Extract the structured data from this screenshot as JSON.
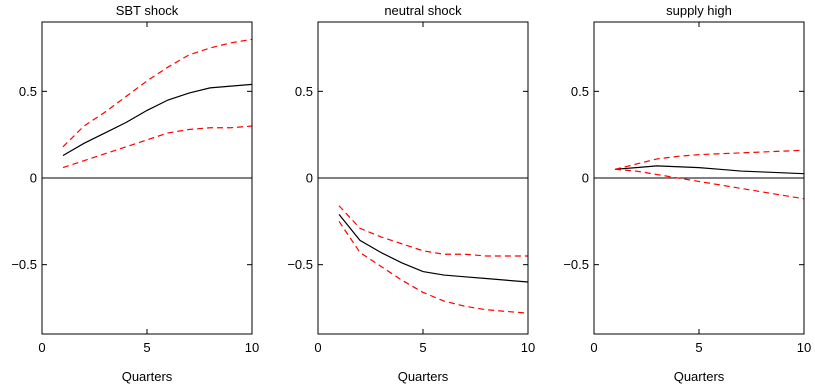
{
  "chart_data": [
    {
      "type": "line",
      "title": "SBT shock",
      "xlabel": "Quarters",
      "ylabel": "",
      "xlim": [
        0,
        10
      ],
      "ylim": [
        -0.9,
        0.9
      ],
      "xticks": [
        0,
        5,
        10
      ],
      "yticks": [
        -0.5,
        0,
        0.5
      ],
      "ytick_labels": [
        "−0.5",
        "0",
        "0.5"
      ],
      "zero_line": true,
      "x": [
        1,
        2,
        3,
        4,
        5,
        6,
        7,
        8,
        9,
        10
      ],
      "series": [
        {
          "role": "estimate",
          "color": "#000000",
          "dash": "solid",
          "values": [
            0.13,
            0.2,
            0.26,
            0.32,
            0.39,
            0.45,
            0.49,
            0.52,
            0.53,
            0.54
          ]
        },
        {
          "role": "upper-band",
          "color": "#ff0000",
          "dash": "dashed",
          "values": [
            0.18,
            0.3,
            0.38,
            0.47,
            0.56,
            0.64,
            0.71,
            0.75,
            0.78,
            0.8
          ]
        },
        {
          "role": "lower-band",
          "color": "#ff0000",
          "dash": "dashed",
          "values": [
            0.06,
            0.1,
            0.14,
            0.18,
            0.22,
            0.26,
            0.28,
            0.29,
            0.29,
            0.3
          ]
        }
      ]
    },
    {
      "type": "line",
      "title": "neutral shock",
      "xlabel": "Quarters",
      "ylabel": "",
      "xlim": [
        0,
        10
      ],
      "ylim": [
        -0.9,
        0.9
      ],
      "xticks": [
        0,
        5,
        10
      ],
      "yticks": [
        -0.5,
        0,
        0.5
      ],
      "ytick_labels": [
        "−0.5",
        "0",
        "0.5"
      ],
      "zero_line": true,
      "x": [
        1,
        2,
        3,
        4,
        5,
        6,
        7,
        8,
        9,
        10
      ],
      "series": [
        {
          "role": "estimate",
          "color": "#000000",
          "dash": "solid",
          "values": [
            -0.21,
            -0.36,
            -0.43,
            -0.49,
            -0.54,
            -0.56,
            -0.57,
            -0.58,
            -0.59,
            -0.6
          ]
        },
        {
          "role": "upper-band",
          "color": "#ff0000",
          "dash": "dashed",
          "values": [
            -0.16,
            -0.29,
            -0.34,
            -0.38,
            -0.42,
            -0.44,
            -0.44,
            -0.45,
            -0.45,
            -0.45
          ]
        },
        {
          "role": "lower-band",
          "color": "#ff0000",
          "dash": "dashed",
          "values": [
            -0.25,
            -0.43,
            -0.51,
            -0.59,
            -0.66,
            -0.71,
            -0.74,
            -0.76,
            -0.77,
            -0.78
          ]
        }
      ]
    },
    {
      "type": "line",
      "title": "supply high",
      "xlabel": "Quarters",
      "ylabel": "",
      "xlim": [
        0,
        10
      ],
      "ylim": [
        -0.9,
        0.9
      ],
      "xticks": [
        0,
        5,
        10
      ],
      "yticks": [
        -0.5,
        0,
        0.5
      ],
      "ytick_labels": [
        "−0.5",
        "0",
        "0.5"
      ],
      "zero_line": true,
      "x": [
        1,
        2,
        3,
        4,
        5,
        6,
        7,
        8,
        9,
        10
      ],
      "series": [
        {
          "role": "estimate",
          "color": "#000000",
          "dash": "solid",
          "values": [
            0.05,
            0.06,
            0.07,
            0.065,
            0.06,
            0.05,
            0.04,
            0.035,
            0.03,
            0.025
          ]
        },
        {
          "role": "upper-band",
          "color": "#ff0000",
          "dash": "dashed",
          "values": [
            0.05,
            0.08,
            0.11,
            0.125,
            0.135,
            0.14,
            0.145,
            0.15,
            0.155,
            0.16
          ]
        },
        {
          "role": "lower-band",
          "color": "#ff0000",
          "dash": "dashed",
          "values": [
            0.05,
            0.04,
            0.02,
            0.0,
            -0.02,
            -0.04,
            -0.06,
            -0.08,
            -0.1,
            -0.12
          ]
        }
      ]
    }
  ]
}
